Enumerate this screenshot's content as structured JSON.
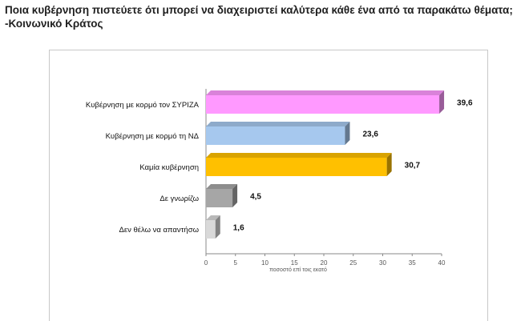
{
  "title": "Ποια κυβέρνηση  πιστεύετε ότι μπορεί να διαχειριστεί καλύτερα κάθε ένα από τα παρακάτω θέματα; -Κοινωνικό Κράτος",
  "chart_data": {
    "type": "bar",
    "orientation": "horizontal",
    "categories": [
      "Κυβέρνηση με κορμό τον ΣΥΡΙΖΑ",
      "Κυβέρνηση με κορμό τη ΝΔ",
      "Καμία κυβέρνηση",
      "Δε γνωρίζω",
      "Δεν θέλω να απαντήσω"
    ],
    "values": [
      39.6,
      23.6,
      30.7,
      4.5,
      1.6
    ],
    "value_labels": [
      "39,6",
      "23,6",
      "30,7",
      "4,5",
      "1,6"
    ],
    "colors": [
      "#ff99ff",
      "#a6c8ee",
      "#ffc000",
      "#a6a6a6",
      "#d9d9d9"
    ],
    "xlabel": "ποσοστό επί τοις εκατό",
    "ylabel": "",
    "xlim": [
      0,
      40
    ],
    "xticks": [
      0,
      5,
      10,
      15,
      20,
      25,
      30,
      35,
      40
    ],
    "grid": false,
    "legend": "none"
  }
}
